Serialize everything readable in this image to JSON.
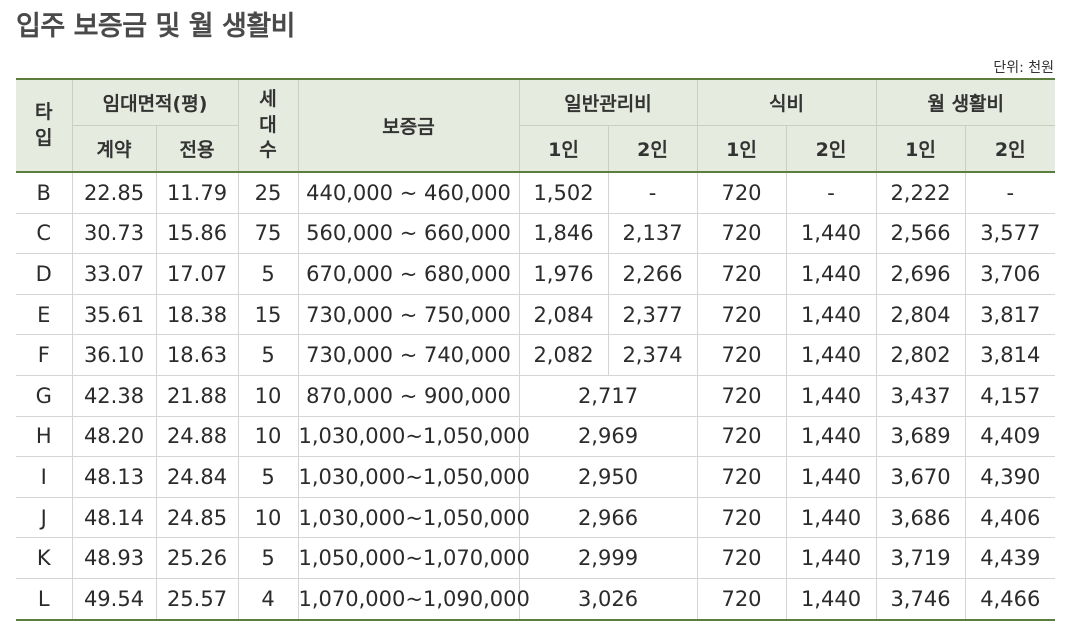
{
  "title": "입주 보증금 및 월 생활비",
  "unit": "단위: 천원",
  "headers": {
    "type": "타\n입",
    "area": "임대면적(평)",
    "area_contract": "계약",
    "area_exclusive": "전용",
    "households": "세\n대\n수",
    "deposit": "보증금",
    "mgmt": "일반관리비",
    "food": "식비",
    "living": "월 생활비",
    "one": "1인",
    "two": "2인"
  },
  "rows": [
    {
      "type": "B",
      "contract": "22.85",
      "exclusive": "11.79",
      "households": "25",
      "deposit": "440,000 ~ 460,000",
      "mgmt1": "1,502",
      "mgmt2": "-",
      "food1": "720",
      "food2": "-",
      "living1": "2,222",
      "living2": "-"
    },
    {
      "type": "C",
      "contract": "30.73",
      "exclusive": "15.86",
      "households": "75",
      "deposit": "560,000 ~ 660,000",
      "mgmt1": "1,846",
      "mgmt2": "2,137",
      "food1": "720",
      "food2": "1,440",
      "living1": "2,566",
      "living2": "3,577"
    },
    {
      "type": "D",
      "contract": "33.07",
      "exclusive": "17.07",
      "households": "5",
      "deposit": "670,000 ~ 680,000",
      "mgmt1": "1,976",
      "mgmt2": "2,266",
      "food1": "720",
      "food2": "1,440",
      "living1": "2,696",
      "living2": "3,706"
    },
    {
      "type": "E",
      "contract": "35.61",
      "exclusive": "18.38",
      "households": "15",
      "deposit": "730,000 ~ 750,000",
      "mgmt1": "2,084",
      "mgmt2": "2,377",
      "food1": "720",
      "food2": "1,440",
      "living1": "2,804",
      "living2": "3,817"
    },
    {
      "type": "F",
      "contract": "36.10",
      "exclusive": "18.63",
      "households": "5",
      "deposit": "730,000 ~ 740,000",
      "mgmt1": "2,082",
      "mgmt2": "2,374",
      "food1": "720",
      "food2": "1,440",
      "living1": "2,802",
      "living2": "3,814"
    },
    {
      "type": "G",
      "contract": "42.38",
      "exclusive": "21.88",
      "households": "10",
      "deposit": "870,000 ~ 900,000",
      "mgmt": "2,717",
      "food1": "720",
      "food2": "1,440",
      "living1": "3,437",
      "living2": "4,157"
    },
    {
      "type": "H",
      "contract": "48.20",
      "exclusive": "24.88",
      "households": "10",
      "deposit": "1,030,000~1,050,000",
      "mgmt": "2,969",
      "food1": "720",
      "food2": "1,440",
      "living1": "3,689",
      "living2": "4,409"
    },
    {
      "type": "I",
      "contract": "48.13",
      "exclusive": "24.84",
      "households": "5",
      "deposit": "1,030,000~1,050,000",
      "mgmt": "2,950",
      "food1": "720",
      "food2": "1,440",
      "living1": "3,670",
      "living2": "4,390"
    },
    {
      "type": "J",
      "contract": "48.14",
      "exclusive": "24.85",
      "households": "10",
      "deposit": "1,030,000~1,050,000",
      "mgmt": "2,966",
      "food1": "720",
      "food2": "1,440",
      "living1": "3,686",
      "living2": "4,406"
    },
    {
      "type": "K",
      "contract": "48.93",
      "exclusive": "25.26",
      "households": "5",
      "deposit": "1,050,000~1,070,000",
      "mgmt": "2,999",
      "food1": "720",
      "food2": "1,440",
      "living1": "3,719",
      "living2": "4,439"
    },
    {
      "type": "L",
      "contract": "49.54",
      "exclusive": "25.57",
      "households": "4",
      "deposit": "1,070,000~1,090,000",
      "mgmt": "3,026",
      "food1": "720",
      "food2": "1,440",
      "living1": "3,746",
      "living2": "4,466"
    }
  ]
}
